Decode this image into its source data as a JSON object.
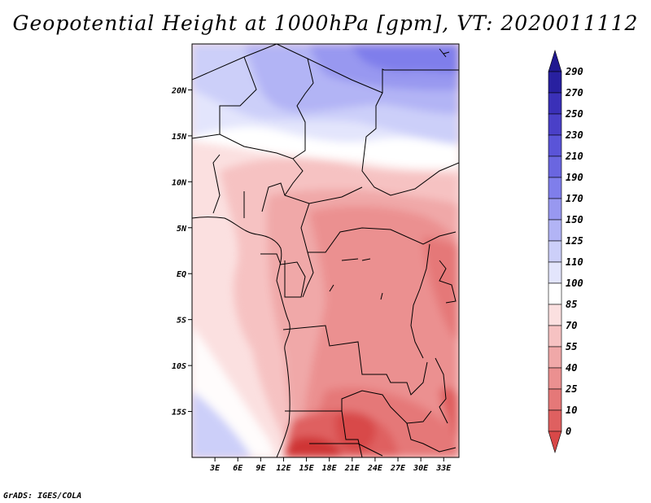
{
  "title": "Geopotential Height at 1000hPa [gpm], VT: 2020011112",
  "footer": "GrADS: IGES/COLA",
  "colors": {
    "border": "#000000",
    "blue_levels": [
      "#2820a0",
      "#3a30b8",
      "#4a40c8",
      "#5a54d8",
      "#6a66e0",
      "#7f7eeb",
      "#9898f0",
      "#b2b4f5",
      "#cccff9",
      "#e3e5fc"
    ],
    "white": "#ffffff",
    "red_levels": [
      "#fbe0e0",
      "#f6c2c2",
      "#f0a8a8",
      "#eb9090",
      "#e57878",
      "#df6060",
      "#d84848",
      "#cf3535",
      "#c42222",
      "#b81414",
      "#a80a0a"
    ]
  },
  "chart_data": {
    "type": "heatmap",
    "title": "Geopotential Height at 1000hPa [gpm], VT: 2020011112",
    "variable": "Geopotential Height at 1000hPa",
    "units": "gpm",
    "valid_time": "2020011112",
    "x_ticks": [
      "3E",
      "6E",
      "9E",
      "12E",
      "15E",
      "18E",
      "21E",
      "24E",
      "27E",
      "30E",
      "33E"
    ],
    "y_ticks": [
      "20N",
      "15N",
      "10N",
      "5N",
      "EQ",
      "5S",
      "10S",
      "15S"
    ],
    "x_tick_values": [
      3,
      6,
      9,
      12,
      15,
      18,
      21,
      24,
      27,
      30,
      33
    ],
    "y_tick_values": [
      20,
      15,
      10,
      5,
      0,
      -5,
      -10,
      -15
    ],
    "lon_range": [
      0,
      35
    ],
    "lat_range": [
      -20,
      25
    ],
    "colorbar_levels": [
      290,
      270,
      250,
      230,
      210,
      190,
      170,
      150,
      125,
      110,
      100,
      85,
      70,
      55,
      40,
      25,
      10,
      0
    ]
  }
}
